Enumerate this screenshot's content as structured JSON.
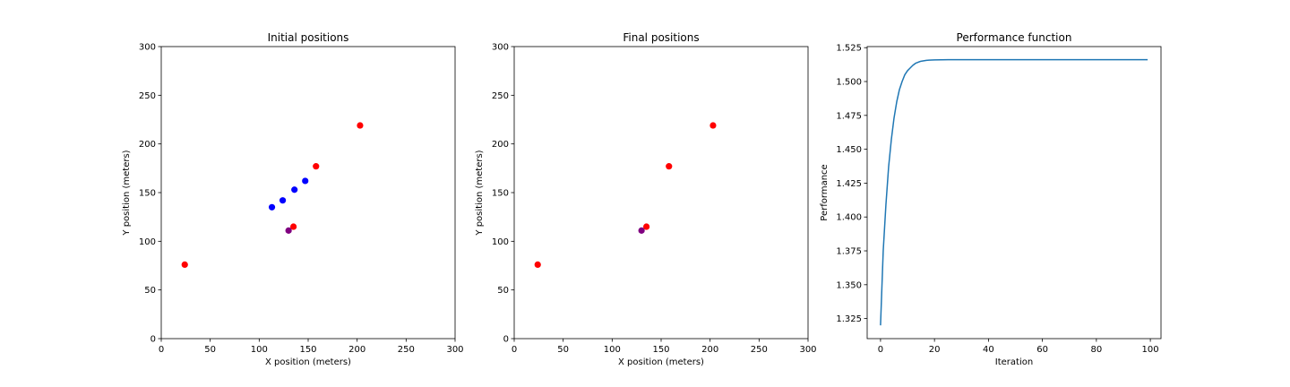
{
  "chart_data": [
    {
      "type": "scatter",
      "title": "Initial positions",
      "xlabel": "X position (meters)",
      "ylabel": "Y position (meters)",
      "xlim": [
        0,
        300
      ],
      "ylim": [
        0,
        300
      ],
      "xticks": [
        0,
        50,
        100,
        150,
        200,
        250,
        300
      ],
      "yticks": [
        0,
        50,
        100,
        150,
        200,
        250,
        300
      ],
      "grid": false,
      "series": [
        {
          "color": "#ff0000",
          "points": [
            [
              24,
              76
            ],
            [
              135,
              115
            ],
            [
              158,
              177
            ],
            [
              203,
              219
            ]
          ]
        },
        {
          "color": "#0000ff",
          "points": [
            [
              113,
              135
            ],
            [
              124,
              142
            ],
            [
              136,
              153
            ],
            [
              147,
              162
            ]
          ]
        },
        {
          "color": "#800080",
          "points": [
            [
              130,
              111
            ]
          ]
        }
      ]
    },
    {
      "type": "scatter",
      "title": "Final positions",
      "xlabel": "X position (meters)",
      "ylabel": "Y position (meters)",
      "xlim": [
        0,
        300
      ],
      "ylim": [
        0,
        300
      ],
      "xticks": [
        0,
        50,
        100,
        150,
        200,
        250,
        300
      ],
      "yticks": [
        0,
        50,
        100,
        150,
        200,
        250,
        300
      ],
      "grid": false,
      "series": [
        {
          "color": "#ff0000",
          "points": [
            [
              24,
              76
            ],
            [
              135,
              115
            ],
            [
              158,
              177
            ],
            [
              203,
              219
            ]
          ]
        },
        {
          "color": "#800080",
          "points": [
            [
              130,
              111
            ]
          ]
        }
      ]
    },
    {
      "type": "line",
      "title": "Performance function",
      "xlabel": "Iteration",
      "ylabel": "Performance",
      "xlim": [
        -4.95,
        103.95
      ],
      "ylim": [
        1.3102,
        1.5258
      ],
      "xticks": [
        0,
        20,
        40,
        60,
        80,
        100
      ],
      "yticks": [
        1.325,
        1.35,
        1.375,
        1.4,
        1.425,
        1.45,
        1.475,
        1.5,
        1.525
      ],
      "ytick_decimals": 3,
      "grid": false,
      "series": [
        {
          "color": "#1f77b4",
          "x": [
            0,
            1,
            2,
            3,
            4,
            5,
            6,
            7,
            8,
            9,
            10,
            11,
            12,
            13,
            14,
            15,
            16,
            17,
            18,
            20,
            25,
            30,
            40,
            50,
            60,
            70,
            80,
            90,
            99
          ],
          "y": [
            1.32,
            1.375,
            1.409,
            1.437,
            1.457,
            1.473,
            1.485,
            1.494,
            1.5,
            1.505,
            1.508,
            1.51,
            1.512,
            1.5135,
            1.5143,
            1.515,
            1.5153,
            1.5156,
            1.5158,
            1.516,
            1.5161,
            1.5161,
            1.5161,
            1.5161,
            1.5161,
            1.5161,
            1.5161,
            1.5161,
            1.5161
          ]
        }
      ]
    }
  ]
}
